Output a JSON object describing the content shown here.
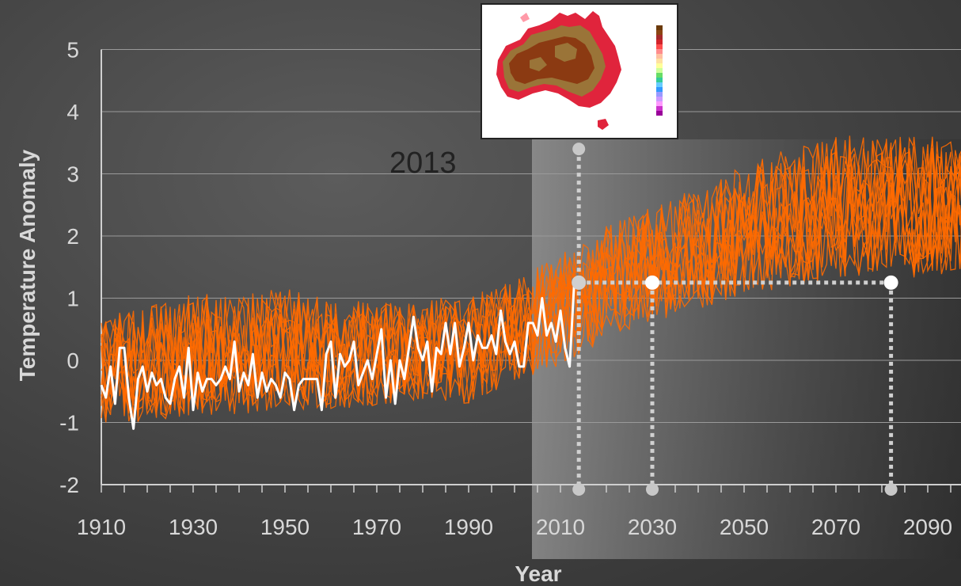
{
  "chart_data": {
    "type": "line",
    "title": "",
    "xlabel": "Year",
    "ylabel": "Temperature Anomaly",
    "xlim": [
      1910,
      2100
    ],
    "ylim": [
      -2,
      5
    ],
    "x_ticks": [
      "1910",
      "1930",
      "1950",
      "1970",
      "1990",
      "2010",
      "2030",
      "2050",
      "2070",
      "2090"
    ],
    "y_ticks": [
      "-2",
      "-1",
      "0",
      "1",
      "2",
      "3",
      "4",
      "5"
    ],
    "grid": true,
    "legend": "none",
    "series": [
      {
        "name": "",
        "color": "#ffffff",
        "x": [
          1910,
          1911,
          1912,
          1913,
          1914,
          1915,
          1916,
          1917,
          1918,
          1919,
          1920,
          1921,
          1922,
          1923,
          1924,
          1925,
          1926,
          1927,
          1928,
          1929,
          1930,
          1931,
          1932,
          1933,
          1934,
          1935,
          1936,
          1937,
          1938,
          1939,
          1940,
          1941,
          1942,
          1943,
          1944,
          1945,
          1946,
          1947,
          1948,
          1949,
          1950,
          1951,
          1952,
          1953,
          1954,
          1955,
          1956,
          1957,
          1958,
          1959,
          1960,
          1961,
          1962,
          1963,
          1964,
          1965,
          1966,
          1967,
          1968,
          1969,
          1970,
          1971,
          1972,
          1973,
          1974,
          1975,
          1976,
          1977,
          1978,
          1979,
          1980,
          1981,
          1982,
          1983,
          1984,
          1985,
          1986,
          1987,
          1988,
          1989,
          1990,
          1991,
          1992,
          1993,
          1994,
          1995,
          1996,
          1997,
          1998,
          1999,
          2000,
          2001,
          2002,
          2003,
          2004,
          2005,
          2006,
          2007,
          2008,
          2009,
          2010,
          2011,
          2012,
          2013
        ],
        "y": [
          -0.4,
          -0.6,
          -0.1,
          -0.7,
          0.2,
          0.2,
          -0.6,
          -1.1,
          -0.3,
          -0.1,
          -0.5,
          -0.2,
          -0.4,
          -0.3,
          -0.6,
          -0.7,
          -0.3,
          -0.1,
          -0.6,
          0.2,
          -0.8,
          -0.2,
          -0.5,
          -0.3,
          -0.3,
          -0.4,
          -0.3,
          -0.1,
          -0.3,
          0.3,
          -0.5,
          -0.2,
          -0.4,
          0.1,
          -0.6,
          -0.2,
          -0.5,
          -0.3,
          -0.4,
          -0.6,
          -0.2,
          -0.3,
          -0.8,
          -0.4,
          -0.3,
          -0.3,
          -0.3,
          -0.3,
          -0.8,
          0.1,
          0.3,
          -0.6,
          0.1,
          -0.1,
          0.0,
          0.3,
          -0.4,
          -0.2,
          0.0,
          -0.3,
          0.1,
          0.5,
          -0.6,
          0.0,
          -0.7,
          0.0,
          -0.3,
          0.2,
          0.7,
          0.2,
          0.0,
          0.3,
          -0.5,
          0.2,
          0.1,
          0.6,
          0.1,
          0.6,
          -0.1,
          0.2,
          0.6,
          0.0,
          0.4,
          0.2,
          0.2,
          0.4,
          0.1,
          0.8,
          0.3,
          0.1,
          0.3,
          -0.1,
          -0.1,
          0.6,
          0.6,
          0.4,
          1.0,
          0.4,
          0.6,
          0.3,
          0.8,
          0.2,
          -0.1,
          1.25
        ]
      },
      {
        "name": "",
        "color": "#ff6a00",
        "x": [
          1910,
          1920,
          1930,
          1940,
          1950,
          1960,
          1970,
          1980,
          1990,
          2000,
          2010,
          2020,
          2030,
          2040,
          2050,
          2060,
          2070,
          2080,
          2090,
          2100
        ],
        "y_min": [
          -1.3,
          -1.3,
          -1.2,
          -1.2,
          -1.1,
          -1.1,
          -1.0,
          -0.9,
          -1.0,
          -0.6,
          -0.4,
          0.0,
          0.3,
          0.5,
          0.7,
          0.8,
          0.9,
          1.0,
          0.9,
          1.1
        ],
        "y_max": [
          1.0,
          1.2,
          1.4,
          1.4,
          1.5,
          1.3,
          1.2,
          1.3,
          1.3,
          1.6,
          2.0,
          2.5,
          2.8,
          3.1,
          3.5,
          3.8,
          4.0,
          4.0,
          4.0,
          3.8
        ]
      }
    ],
    "annotations": {
      "year_label": "2013",
      "marked_points": [
        {
          "x": 2014,
          "y": 1.25
        },
        {
          "x": 2030,
          "y": 1.25
        },
        {
          "x": 2082,
          "y": 1.25
        }
      ],
      "upper_marker": {
        "x": 2014,
        "y": 3.4
      }
    }
  },
  "legend_swatches": [
    "#6b3a0a",
    "#8b4513",
    "#a52a2a",
    "#d2232a",
    "#ff4d4d",
    "#ff8c8c",
    "#ffc0a0",
    "#ffe0a0",
    "#ffff99",
    "#ccff99",
    "#66dd66",
    "#33cc99",
    "#66ccff",
    "#3399ff",
    "#9999ff",
    "#cc99ff",
    "#ff99ff",
    "#cc33cc",
    "#990099"
  ]
}
